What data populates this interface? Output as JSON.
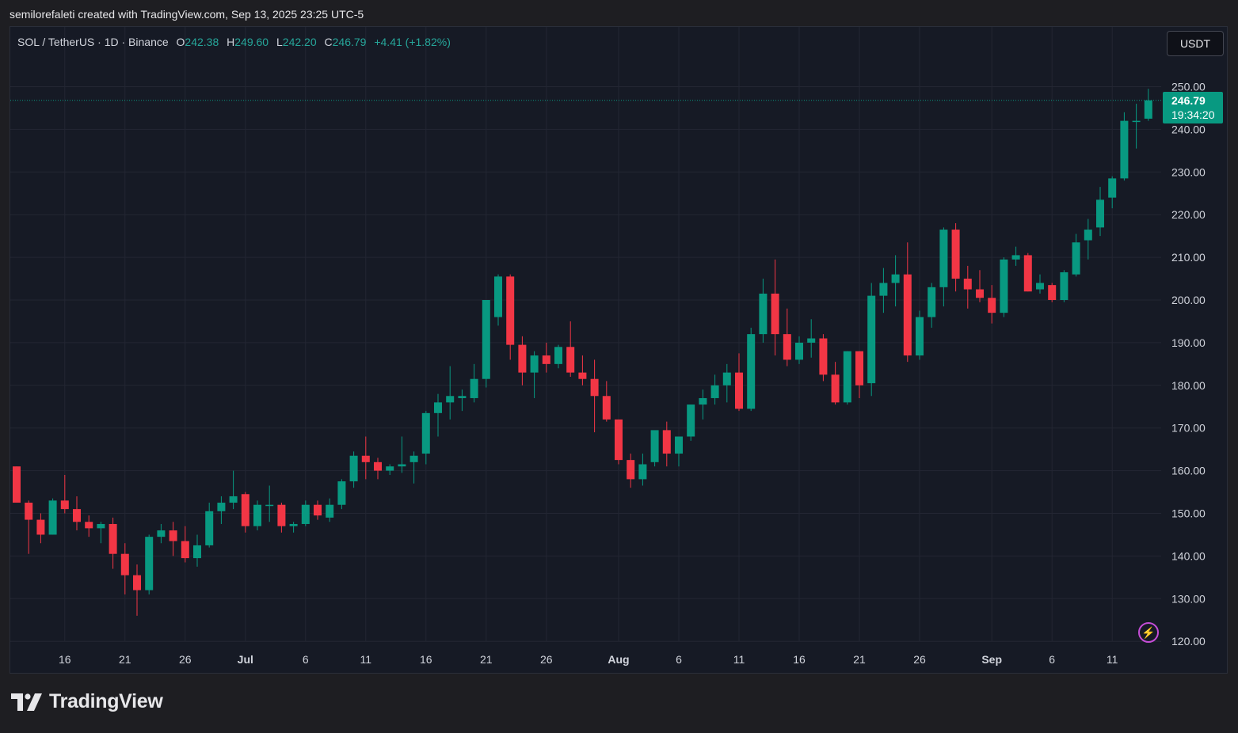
{
  "caption": "semilorefaleti created with TradingView.com, Sep 13, 2025 23:25 UTC-5",
  "legend": {
    "symbol": "SOL / TetherUS · 1D · Binance",
    "o_label": "O",
    "o_value": "242.38",
    "h_label": "H",
    "h_value": "249.60",
    "l_label": "L",
    "l_value": "242.20",
    "c_label": "C",
    "c_value": "246.79",
    "change": "+4.41 (+1.82%)"
  },
  "currency_button": "USDT",
  "price_tag": {
    "price": "246.79",
    "countdown": "19:34:20"
  },
  "brand": "TradingView",
  "icons": {
    "alert": "lightning-icon",
    "logo": "tradingview-logo-icon"
  },
  "colors": {
    "up": "#089981",
    "down": "#f23645",
    "background": "#161a25",
    "grid": "#232633"
  },
  "chart_data": {
    "type": "candlestick",
    "ylim": [
      117,
      254
    ],
    "y_ticks": [
      "250.00",
      "240.00",
      "230.00",
      "220.00",
      "210.00",
      "200.00",
      "190.00",
      "180.00",
      "170.00",
      "160.00",
      "150.00",
      "140.00",
      "130.00",
      "120.00"
    ],
    "y_tick_values": [
      250,
      240,
      230,
      220,
      210,
      200,
      190,
      180,
      170,
      160,
      150,
      140,
      130,
      120
    ],
    "x_ticks": [
      {
        "label": "16",
        "index": 4
      },
      {
        "label": "21",
        "index": 9
      },
      {
        "label": "26",
        "index": 14
      },
      {
        "label": "Jul",
        "index": 19,
        "bold": true
      },
      {
        "label": "6",
        "index": 24
      },
      {
        "label": "11",
        "index": 29
      },
      {
        "label": "16",
        "index": 34
      },
      {
        "label": "21",
        "index": 39
      },
      {
        "label": "26",
        "index": 44
      },
      {
        "label": "Aug",
        "index": 50,
        "bold": true
      },
      {
        "label": "6",
        "index": 55
      },
      {
        "label": "11",
        "index": 60
      },
      {
        "label": "16",
        "index": 65
      },
      {
        "label": "21",
        "index": 70
      },
      {
        "label": "26",
        "index": 75
      },
      {
        "label": "Sep",
        "index": 81,
        "bold": true
      },
      {
        "label": "6",
        "index": 86
      },
      {
        "label": "11",
        "index": 91
      }
    ],
    "last_close": 246.79,
    "candles": [
      [
        161,
        161,
        152.5,
        152.5
      ],
      [
        152.5,
        153,
        140.5,
        148.5
      ],
      [
        148.5,
        150,
        143,
        145
      ],
      [
        145,
        153.5,
        145,
        153
      ],
      [
        153,
        159,
        150,
        151
      ],
      [
        151,
        154,
        146,
        148
      ],
      [
        148,
        149.5,
        144.5,
        146.5
      ],
      [
        146.5,
        148,
        143,
        147.5
      ],
      [
        147.5,
        149,
        137,
        140.5
      ],
      [
        140.5,
        143,
        131,
        135.5
      ],
      [
        135.5,
        138,
        126,
        132
      ],
      [
        132,
        145,
        131,
        144.5
      ],
      [
        144.5,
        147.5,
        143,
        146
      ],
      [
        146,
        148,
        140,
        143.5
      ],
      [
        143.5,
        147,
        138.5,
        139.5
      ],
      [
        139.5,
        145,
        137.5,
        142.5
      ],
      [
        142.5,
        152.5,
        142,
        150.5
      ],
      [
        150.5,
        154,
        147.5,
        152.5
      ],
      [
        152.5,
        160,
        151,
        154
      ],
      [
        154.5,
        155,
        145.5,
        147
      ],
      [
        147,
        153,
        146,
        152
      ],
      [
        152,
        156.5,
        148,
        152
      ],
      [
        152,
        152.5,
        145.5,
        147
      ],
      [
        147,
        148,
        145.5,
        147.5
      ],
      [
        147.5,
        153,
        147,
        152
      ],
      [
        152,
        153,
        148.5,
        149.5
      ],
      [
        149,
        153.5,
        148,
        152
      ],
      [
        152,
        158,
        151,
        157.5
      ],
      [
        157.5,
        164.5,
        156,
        163.5
      ],
      [
        163.5,
        168,
        158,
        162
      ],
      [
        162,
        163,
        158,
        160
      ],
      [
        160,
        161.5,
        159,
        161
      ],
      [
        161,
        168,
        159.5,
        161.5
      ],
      [
        162,
        164.5,
        157,
        163.5
      ],
      [
        164,
        174,
        161.5,
        173.5
      ],
      [
        173.5,
        178,
        168,
        176
      ],
      [
        176,
        184.5,
        172,
        177.5
      ],
      [
        177,
        179,
        174,
        177.5
      ],
      [
        177,
        185,
        176,
        181.5
      ],
      [
        181.5,
        200,
        179.5,
        200
      ],
      [
        196,
        206,
        194,
        205.5
      ],
      [
        205.5,
        206,
        186,
        189.5
      ],
      [
        189.5,
        191.5,
        180,
        183
      ],
      [
        183,
        188,
        177,
        187
      ],
      [
        187,
        190,
        183,
        185
      ],
      [
        185,
        189.5,
        184,
        189
      ],
      [
        189,
        195,
        182,
        183
      ],
      [
        183,
        187,
        180,
        181.5
      ],
      [
        181.5,
        186,
        169,
        177.5
      ],
      [
        177.5,
        181,
        171.5,
        172
      ],
      [
        172,
        172,
        161.5,
        162.5
      ],
      [
        162.5,
        164,
        156,
        158
      ],
      [
        158,
        164,
        156.5,
        161.5
      ],
      [
        162,
        169,
        161,
        169.5
      ],
      [
        169.5,
        171.5,
        161,
        164
      ],
      [
        164,
        168,
        161,
        168
      ],
      [
        168,
        175.5,
        167,
        175.5
      ],
      [
        175.5,
        179,
        172,
        177
      ],
      [
        177,
        182.5,
        175.5,
        180
      ],
      [
        180,
        185,
        176,
        183
      ],
      [
        183,
        187.5,
        174,
        174.5
      ],
      [
        174.5,
        193.5,
        174,
        192
      ],
      [
        192,
        205,
        190,
        201.5
      ],
      [
        201.5,
        209.5,
        187,
        192
      ],
      [
        192,
        198,
        184.5,
        186
      ],
      [
        186,
        191.5,
        185,
        190
      ],
      [
        190,
        195.5,
        186.5,
        191
      ],
      [
        191,
        192,
        181,
        182.5
      ],
      [
        182.5,
        185.5,
        175.5,
        176
      ],
      [
        176,
        188,
        175.5,
        188
      ],
      [
        188,
        188,
        177,
        180
      ],
      [
        180.5,
        204,
        177.5,
        201
      ],
      [
        201,
        207.5,
        197,
        204
      ],
      [
        204,
        210.5,
        198.5,
        206
      ],
      [
        206,
        213.5,
        185.5,
        187
      ],
      [
        187,
        197.5,
        186,
        196
      ],
      [
        196,
        204,
        193.5,
        203
      ],
      [
        203,
        217,
        198.5,
        216.5
      ],
      [
        216.5,
        218,
        202,
        205
      ],
      [
        205,
        208,
        198,
        202.5
      ],
      [
        202.5,
        207,
        199.5,
        200.5
      ],
      [
        200.5,
        203.5,
        194.5,
        197
      ],
      [
        197,
        210,
        196,
        209.5
      ],
      [
        209.5,
        212.5,
        208,
        210.5
      ],
      [
        210.5,
        211,
        202,
        202
      ],
      [
        202.5,
        206,
        201.5,
        204
      ],
      [
        203.5,
        204,
        199.5,
        200
      ],
      [
        200,
        207,
        199.5,
        206.5
      ],
      [
        206,
        215.5,
        205.5,
        213.5
      ],
      [
        214,
        219,
        209.5,
        216.5
      ],
      [
        217,
        226.5,
        215,
        223.5
      ],
      [
        224,
        229,
        221.5,
        228.5
      ],
      [
        228.5,
        244,
        228,
        242
      ],
      [
        242,
        246,
        235.5,
        242
      ],
      [
        242.5,
        249.5,
        242,
        246.79
      ]
    ]
  }
}
